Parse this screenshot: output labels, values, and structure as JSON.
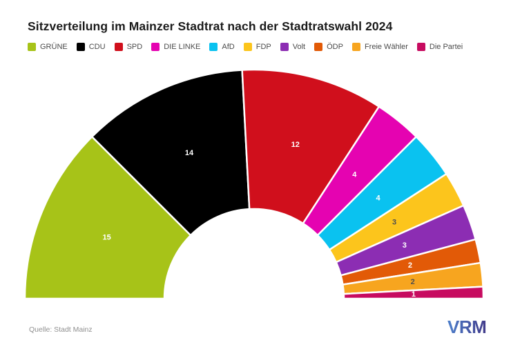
{
  "title": "Sitzverteilung im Mainzer Stadtrat nach der Stadtratswahl 2024",
  "source": "Quelle: Stadt Mainz",
  "logo": {
    "text": "VRM",
    "gradient_start": "#4d7fcb",
    "gradient_end": "#413a8a"
  },
  "chart_data": {
    "type": "half-donut",
    "title": "Sitzverteilung im Mainzer Stadtrat nach der Stadtratswahl 2024",
    "total_seats": 60,
    "legend_position": "top",
    "series": [
      {
        "name": "GRÜNE",
        "seats": 15,
        "color": "#a7c318",
        "label_color": "#ffffff"
      },
      {
        "name": "CDU",
        "seats": 14,
        "color": "#000000",
        "label_color": "#ffffff"
      },
      {
        "name": "SPD",
        "seats": 12,
        "color": "#d00f1c",
        "label_color": "#ffffff"
      },
      {
        "name": "DIE LINKE",
        "seats": 4,
        "color": "#e503b1",
        "label_color": "#ffffff"
      },
      {
        "name": "AfD",
        "seats": 4,
        "color": "#0ac2f0",
        "label_color": "#ffffff"
      },
      {
        "name": "FDP",
        "seats": 3,
        "color": "#fcc51c",
        "label_color": "#4f4f4f"
      },
      {
        "name": "Volt",
        "seats": 3,
        "color": "#8c2db3",
        "label_color": "#ffffff"
      },
      {
        "name": "ÖDP",
        "seats": 2,
        "color": "#e25a07",
        "label_color": "#ffffff"
      },
      {
        "name": "Freie Wähler",
        "seats": 2,
        "color": "#f7a51f",
        "label_color": "#4f4f4f"
      },
      {
        "name": "Die Partei",
        "seats": 1,
        "color": "#c70b60",
        "label_color": "#ffffff"
      }
    ]
  }
}
